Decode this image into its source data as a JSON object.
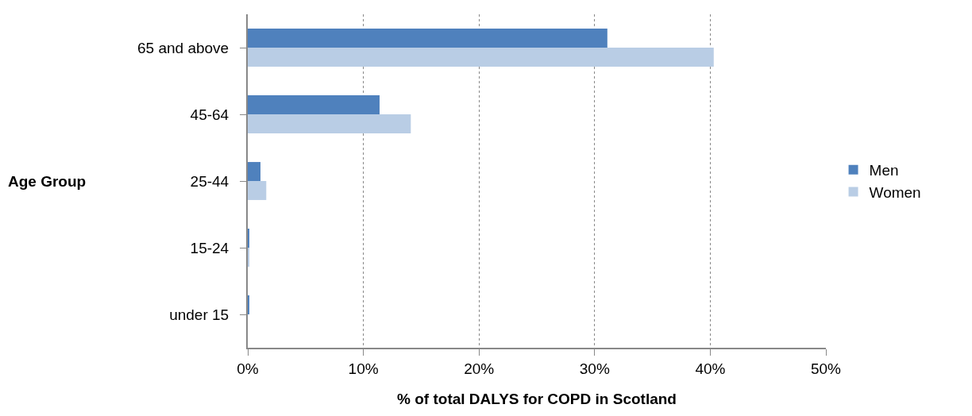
{
  "chart_data": {
    "type": "bar",
    "orientation": "horizontal",
    "xlabel": "% of total DALYS for COPD in Scotland",
    "ylabel": "Age Group",
    "categories": [
      "65 and above",
      "45-64",
      "25-44",
      "15-24",
      "under 15"
    ],
    "series": [
      {
        "name": "Men",
        "color": "#4f81bd",
        "values": [
          31.1,
          11.4,
          1.1,
          0.1,
          0.1
        ]
      },
      {
        "name": "Women",
        "color": "#b9cde5",
        "values": [
          40.3,
          14.1,
          1.6,
          0.1,
          0.0
        ]
      }
    ],
    "xlim": [
      0,
      50
    ],
    "xticks": [
      {
        "value": 0,
        "label": "0%"
      },
      {
        "value": 10,
        "label": "10%"
      },
      {
        "value": 20,
        "label": "20%"
      },
      {
        "value": 30,
        "label": "30%"
      },
      {
        "value": 40,
        "label": "40%"
      },
      {
        "value": 50,
        "label": "50%"
      }
    ],
    "grid": "x",
    "legend": "right"
  }
}
